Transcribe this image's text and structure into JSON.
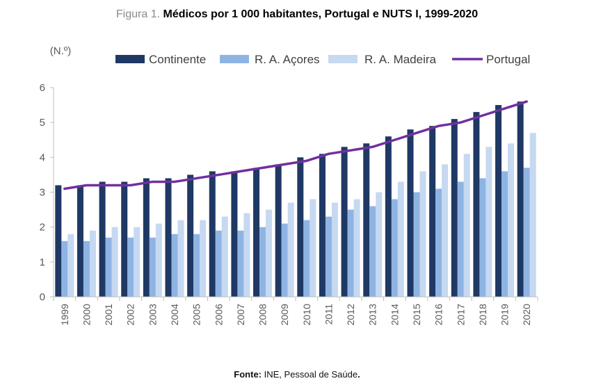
{
  "figure": {
    "prefix": "Figura 1.",
    "title": "Médicos por 1 000 habitantes, Portugal e NUTS I, 1999-2020"
  },
  "source": {
    "label": "Fonte:",
    "text": "INE, Pessoal de Saúde",
    "end": "."
  },
  "colors": {
    "continente": "#1f3864",
    "acores": "#8eb4e3",
    "madeira": "#c6d9f1",
    "portugal": "#7030a0",
    "axis": "#bfbfbf",
    "text": "#595959"
  },
  "chart_data": {
    "type": "bar",
    "unit_label": "(N.º)",
    "xlabel": "",
    "ylabel": "",
    "ylim": [
      0,
      6
    ],
    "yticks": [
      0,
      1,
      2,
      3,
      4,
      5,
      6
    ],
    "grid": false,
    "legend_position": "top",
    "categories": [
      "1999",
      "2000",
      "2001",
      "2002",
      "2003",
      "2004",
      "2005",
      "2006",
      "2007",
      "2008",
      "2009",
      "2010",
      "2011",
      "2012",
      "2013",
      "2014",
      "2015",
      "2016",
      "2017",
      "2018",
      "2019",
      "2020"
    ],
    "series": [
      {
        "name": "Continente",
        "kind": "bar",
        "color": "#1f3864",
        "values": [
          3.2,
          3.2,
          3.3,
          3.3,
          3.4,
          3.4,
          3.5,
          3.6,
          3.6,
          3.7,
          3.8,
          4.0,
          4.1,
          4.3,
          4.4,
          4.6,
          4.8,
          4.9,
          5.1,
          5.3,
          5.5,
          5.6
        ]
      },
      {
        "name": "R. A. Açores",
        "kind": "bar",
        "color": "#8eb4e3",
        "values": [
          1.6,
          1.6,
          1.7,
          1.7,
          1.7,
          1.8,
          1.8,
          1.9,
          1.9,
          2.0,
          2.1,
          2.2,
          2.3,
          2.5,
          2.6,
          2.8,
          3.0,
          3.1,
          3.3,
          3.4,
          3.6,
          3.7
        ]
      },
      {
        "name": "R. A. Madeira",
        "kind": "bar",
        "color": "#c6d9f1",
        "values": [
          1.8,
          1.9,
          2.0,
          2.0,
          2.1,
          2.2,
          2.2,
          2.3,
          2.4,
          2.5,
          2.7,
          2.8,
          2.7,
          2.8,
          3.0,
          3.3,
          3.6,
          3.8,
          4.1,
          4.3,
          4.4,
          4.7
        ]
      },
      {
        "name": "Portugal",
        "kind": "line",
        "color": "#7030a0",
        "values": [
          3.1,
          3.2,
          3.2,
          3.2,
          3.3,
          3.3,
          3.4,
          3.5,
          3.6,
          3.7,
          3.8,
          3.9,
          4.1,
          4.2,
          4.3,
          4.5,
          4.7,
          4.9,
          5.0,
          5.2,
          5.4,
          5.6
        ]
      }
    ]
  }
}
